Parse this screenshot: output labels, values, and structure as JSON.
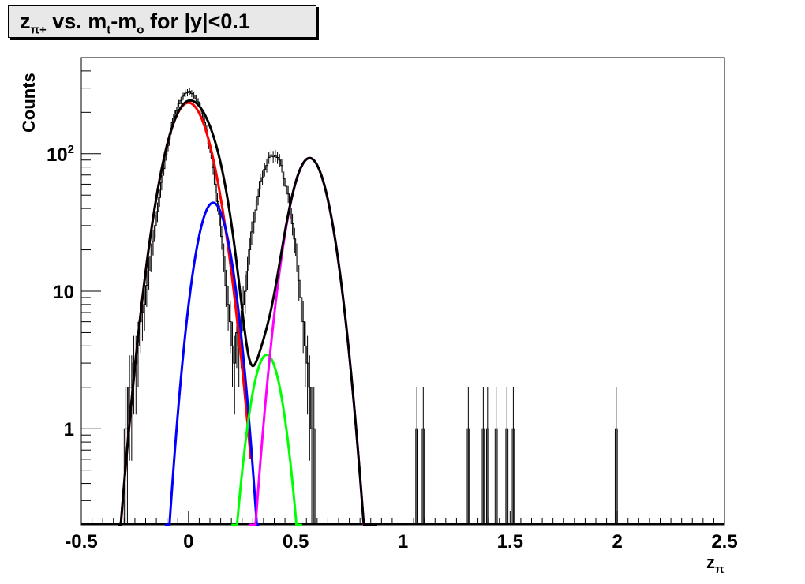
{
  "title": {
    "z": "z",
    "z_sub": "π+",
    "mid": " vs. m",
    "mt_sub": "t",
    "dash": "-m",
    "mo_sub": "o",
    "tail": " for |y|<0.1"
  },
  "chart_data": {
    "type": "histogram",
    "xlabel": "z",
    "xlabel_sub": "π",
    "ylabel": "Counts",
    "xlim": [
      -0.5,
      2.5
    ],
    "ylim": [
      0.2,
      500
    ],
    "yscale": "log",
    "x_ticks": [
      {
        "value": -0.5,
        "label": "-0.5"
      },
      {
        "value": 0,
        "label": "0"
      },
      {
        "value": 0.5,
        "label": "0.5"
      },
      {
        "value": 1,
        "label": "1"
      },
      {
        "value": 1.5,
        "label": "1.5"
      },
      {
        "value": 2,
        "label": "2"
      },
      {
        "value": 2.5,
        "label": "2.5"
      }
    ],
    "y_ticks": [
      {
        "value": 1,
        "label": "1"
      },
      {
        "value": 10,
        "label": "10"
      },
      {
        "value": 100,
        "label": "10",
        "sup": "2"
      }
    ],
    "grid": false,
    "legend": "none",
    "histogram": {
      "x_start": -0.3,
      "bin_width": 0.01,
      "counts": [
        1,
        1,
        2,
        2,
        3,
        3,
        4,
        6,
        7,
        8,
        11,
        14,
        18,
        23,
        30,
        38,
        48,
        62,
        78,
        99,
        115,
        139,
        168,
        194,
        206,
        231,
        244,
        262,
        275,
        278,
        285,
        274,
        267,
        251,
        238,
        219,
        194,
        169,
        148,
        119,
        102,
        79,
        60,
        45,
        36,
        25,
        18,
        11,
        8,
        6,
        4,
        3,
        5,
        4,
        5,
        8,
        10,
        14,
        20,
        27,
        32,
        39,
        49,
        63,
        67,
        77,
        82,
        94,
        98,
        95,
        97,
        94,
        90,
        82,
        66,
        58,
        51,
        40,
        31,
        24,
        18,
        12,
        9,
        6,
        4,
        3,
        2,
        1,
        1
      ],
      "isolated_bins": [
        {
          "x": 1.065,
          "count": 1
        },
        {
          "x": 1.095,
          "count": 1
        },
        {
          "x": 1.305,
          "count": 1
        },
        {
          "x": 1.375,
          "count": 1
        },
        {
          "x": 1.395,
          "count": 1
        },
        {
          "x": 1.435,
          "count": 1
        },
        {
          "x": 1.485,
          "count": 1
        },
        {
          "x": 1.515,
          "count": 1
        },
        {
          "x": 1.995,
          "count": 1
        }
      ]
    },
    "fits": [
      {
        "color": "#ff0000",
        "amplitude": 235,
        "mean": 0.0,
        "sigma": 0.084,
        "range": [
          -0.33,
          0.29
        ]
      },
      {
        "color": "#0000ff",
        "amplitude": 44,
        "mean": 0.115,
        "sigma": 0.062,
        "range": [
          -0.11,
          0.33
        ]
      },
      {
        "color": "#00ff00",
        "amplitude": 3.45,
        "mean": 0.365,
        "sigma": 0.058,
        "range": [
          0.2,
          0.53
        ]
      },
      {
        "color": "#ff00ff",
        "amplitude": 93,
        "mean": 0.565,
        "sigma": 0.072,
        "range": [
          0.28,
          0.82
        ]
      },
      {
        "color": "#000000",
        "type": "sum",
        "range": [
          -0.33,
          0.88
        ]
      }
    ]
  }
}
